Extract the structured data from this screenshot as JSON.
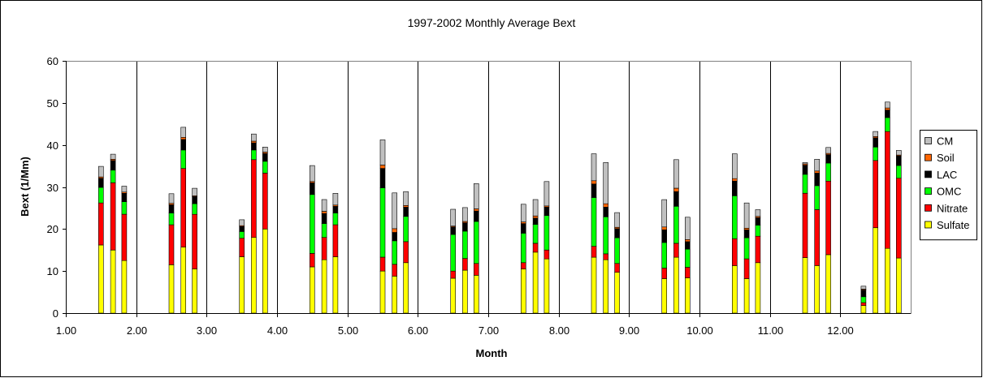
{
  "chart_data": {
    "type": "bar",
    "stacked": true,
    "title": "1997-2002 Monthly Average Bext",
    "xlabel": "Month",
    "ylabel": "Bext (1/Mm)",
    "xlim": [
      1,
      13
    ],
    "ylim": [
      0,
      60
    ],
    "x_ticks": [
      "1.00",
      "2.00",
      "3.00",
      "4.00",
      "5.00",
      "6.00",
      "7.00",
      "8.00",
      "9.00",
      "10.00",
      "11.00",
      "12.00"
    ],
    "y_ticks": [
      "0",
      "10",
      "20",
      "30",
      "40",
      "50",
      "60"
    ],
    "legend_position": "right",
    "grid": "vertical lines at each month",
    "x": [
      1.5,
      1.67,
      1.83,
      2.5,
      2.67,
      2.83,
      3.5,
      3.67,
      3.83,
      4.5,
      4.67,
      4.83,
      5.5,
      5.67,
      5.83,
      6.5,
      6.67,
      6.83,
      7.5,
      7.67,
      7.83,
      8.5,
      8.67,
      8.83,
      9.5,
      9.67,
      9.83,
      10.5,
      10.67,
      10.83,
      11.5,
      11.67,
      11.83,
      12.33,
      12.5,
      12.67,
      12.83
    ],
    "series": [
      {
        "name": "Sulfate",
        "color": "#ffff00",
        "values": [
          16.2,
          15,
          12.5,
          11.5,
          15.7,
          10.5,
          13.4,
          18,
          20,
          11,
          12.7,
          13.4,
          10,
          8.8,
          12,
          8.3,
          10.2,
          9,
          10.5,
          14.5,
          12.9,
          13.3,
          12.7,
          9.7,
          8.2,
          13.3,
          8.4,
          11.3,
          8.2,
          12,
          13.2,
          11.3,
          13.9,
          1.8,
          20.3,
          15.4,
          13.1
        ]
      },
      {
        "name": "Nitrate",
        "color": "#ff0000",
        "values": [
          10,
          16,
          11,
          9.5,
          18.7,
          13,
          4.4,
          18.5,
          13.3,
          3.2,
          5.3,
          7.6,
          3.3,
          2.8,
          5,
          1.7,
          2.8,
          2.8,
          1.5,
          2.1,
          2.1,
          2.6,
          1.4,
          2.1,
          2.5,
          3.3,
          2.5,
          6.4,
          4.7,
          6.3,
          15.3,
          13.3,
          17.5,
          0.7,
          16,
          27.8,
          19
        ]
      },
      {
        "name": "OMC",
        "color": "#00ff00",
        "values": [
          3.7,
          3,
          3,
          2.8,
          4.4,
          2.5,
          1.6,
          2.3,
          2.8,
          14,
          3.3,
          2.8,
          16.5,
          5.6,
          6,
          8.7,
          6.5,
          10,
          7,
          4.5,
          8.2,
          11.6,
          8.8,
          6.1,
          6.1,
          8.8,
          4.3,
          10.2,
          5,
          2.6,
          4.5,
          5.7,
          4.3,
          1.4,
          3.2,
          3.3,
          3
        ]
      },
      {
        "name": "LAC",
        "color": "#000000",
        "values": [
          2.2,
          2.3,
          2,
          2,
          2.5,
          1.7,
          1.2,
          1.7,
          1.9,
          2.8,
          2.4,
          1.6,
          4.6,
          2,
          2.2,
          1.8,
          2,
          2.5,
          2.3,
          1.5,
          2,
          3.2,
          2.3,
          2.2,
          3,
          3.5,
          1.8,
          3.5,
          1.9,
          1.8,
          2.2,
          3,
          2,
          1.6,
          2.2,
          1.8,
          2.3
        ]
      },
      {
        "name": "Soil",
        "color": "#ff6600",
        "values": [
          0.3,
          0.3,
          0.3,
          0.3,
          0.5,
          0.2,
          0.2,
          0.4,
          0.3,
          0.3,
          0.5,
          0.3,
          0.8,
          0.9,
          0.4,
          0.2,
          0.3,
          0.5,
          0.4,
          0.5,
          0.3,
          0.8,
          0.8,
          0.3,
          0.7,
          0.8,
          0.5,
          0.6,
          0.4,
          0.3,
          0.3,
          0.5,
          0.3,
          0.2,
          0.3,
          0.5,
          0.2
        ]
      },
      {
        "name": "CM",
        "color": "#c0c0c0",
        "values": [
          2.5,
          1.2,
          1.4,
          2.3,
          2.4,
          1.8,
          1.4,
          1.7,
          1.2,
          3.8,
          2.8,
          2.8,
          6,
          8.5,
          3.3,
          4,
          3.3,
          6,
          4.2,
          3.9,
          5.8,
          6.4,
          9.8,
          3.5,
          6.5,
          6.8,
          5.3,
          5.9,
          6,
          1.6,
          0.3,
          2.8,
          1.4,
          0.7,
          1.2,
          1.4,
          1.1
        ]
      }
    ]
  }
}
